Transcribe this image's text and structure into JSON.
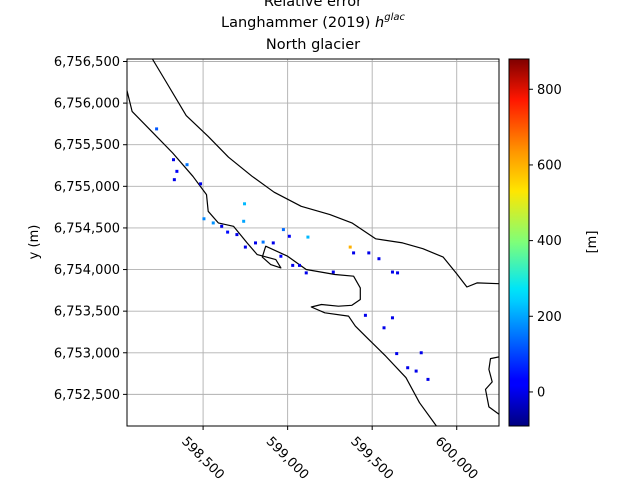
{
  "chart_data": {
    "type": "heatmap",
    "title": {
      "line1": "Relative error",
      "line2_prefix": "Langhammer (2019) ",
      "line2_symbol": "h",
      "line2_superscript": "glac",
      "line3": "North glacier"
    },
    "xlabel": "",
    "ylabel": "y (m)",
    "x_ticks": [
      598500,
      599000,
      599500,
      600000
    ],
    "x_tick_labels": [
      "598,500",
      "599,000",
      "599,500",
      "600,000"
    ],
    "y_ticks": [
      6752500,
      6753000,
      6753500,
      6754000,
      6754500,
      6755000,
      6755500,
      6756000,
      6756500
    ],
    "y_tick_labels": [
      "6,752,500",
      "6,753,000",
      "6,753,500",
      "6,754,000",
      "6,754,500",
      "6,755,000",
      "6,755,500",
      "6,756,000",
      "6,756,500"
    ],
    "xlim": [
      598050,
      600250
    ],
    "ylim": [
      6752120,
      6756530
    ],
    "grid": true,
    "colorbar": {
      "colormap": "jet",
      "range": [
        -90,
        880
      ],
      "ticks": [
        0,
        200,
        400,
        600,
        800
      ],
      "tick_labels": [
        "0",
        "200",
        "400",
        "600",
        "800"
      ],
      "label": "[m]"
    },
    "outline": [
      [
        [
          598200,
          6756530
        ],
        [
          598280,
          6756260
        ],
        [
          598400,
          6755850
        ],
        [
          598530,
          6755600
        ],
        [
          598650,
          6755350
        ],
        [
          598790,
          6755120
        ],
        [
          598920,
          6754930
        ],
        [
          599080,
          6754760
        ],
        [
          599250,
          6754660
        ],
        [
          599380,
          6754560
        ],
        [
          599520,
          6754370
        ],
        [
          599680,
          6754320
        ],
        [
          599800,
          6754250
        ],
        [
          599920,
          6754150
        ],
        [
          600000,
          6753950
        ],
        [
          600060,
          6753790
        ],
        [
          600120,
          6753840
        ],
        [
          600250,
          6753830
        ]
      ],
      [
        [
          598050,
          6756150
        ],
        [
          598080,
          6755900
        ],
        [
          598200,
          6755650
        ],
        [
          598320,
          6755400
        ],
        [
          598440,
          6755120
        ],
        [
          598520,
          6754900
        ],
        [
          598530,
          6754700
        ],
        [
          598590,
          6754560
        ],
        [
          598680,
          6754520
        ],
        [
          598760,
          6754320
        ],
        [
          598820,
          6754180
        ],
        [
          598930,
          6754120
        ],
        [
          598960,
          6754020
        ],
        [
          598900,
          6754060
        ],
        [
          598850,
          6754150
        ],
        [
          598870,
          6754280
        ],
        [
          599000,
          6754160
        ],
        [
          599110,
          6754000
        ],
        [
          599280,
          6753940
        ],
        [
          599390,
          6753920
        ],
        [
          599430,
          6753780
        ],
        [
          599430,
          6753640
        ],
        [
          599380,
          6753570
        ],
        [
          599300,
          6753560
        ],
        [
          599200,
          6753580
        ],
        [
          599140,
          6753550
        ],
        [
          599220,
          6753480
        ],
        [
          599360,
          6753440
        ],
        [
          599400,
          6753320
        ],
        [
          599470,
          6753180
        ],
        [
          599580,
          6752960
        ],
        [
          599700,
          6752700
        ],
        [
          599780,
          6752400
        ],
        [
          599880,
          6752120
        ]
      ],
      [
        [
          600250,
          6752950
        ],
        [
          600200,
          6752930
        ],
        [
          600190,
          6752800
        ],
        [
          600210,
          6752650
        ],
        [
          600170,
          6752560
        ],
        [
          600190,
          6752350
        ],
        [
          600250,
          6752260
        ]
      ]
    ],
    "points": [
      {
        "x": 598225,
        "y": 6755690,
        "value": 120
      },
      {
        "x": 598325,
        "y": 6755320,
        "value": 0
      },
      {
        "x": 598345,
        "y": 6755180,
        "value": 10
      },
      {
        "x": 598405,
        "y": 6755260,
        "value": 150
      },
      {
        "x": 598330,
        "y": 6755080,
        "value": 0
      },
      {
        "x": 598485,
        "y": 6755030,
        "value": 0
      },
      {
        "x": 598505,
        "y": 6754610,
        "value": 170
      },
      {
        "x": 598560,
        "y": 6754560,
        "value": 180
      },
      {
        "x": 598610,
        "y": 6754520,
        "value": 0
      },
      {
        "x": 598645,
        "y": 6754450,
        "value": 40
      },
      {
        "x": 598700,
        "y": 6754420,
        "value": 0
      },
      {
        "x": 598745,
        "y": 6754790,
        "value": 220
      },
      {
        "x": 598740,
        "y": 6754580,
        "value": 200
      },
      {
        "x": 598750,
        "y": 6754270,
        "value": 0
      },
      {
        "x": 598810,
        "y": 6754320,
        "value": 0
      },
      {
        "x": 598855,
        "y": 6754330,
        "value": 150
      },
      {
        "x": 598915,
        "y": 6754320,
        "value": 0
      },
      {
        "x": 598975,
        "y": 6754480,
        "value": 140
      },
      {
        "x": 599010,
        "y": 6754400,
        "value": 10
      },
      {
        "x": 598960,
        "y": 6754160,
        "value": 20
      },
      {
        "x": 599030,
        "y": 6754050,
        "value": 0
      },
      {
        "x": 599070,
        "y": 6754050,
        "value": 0
      },
      {
        "x": 599110,
        "y": 6753960,
        "value": 0
      },
      {
        "x": 599120,
        "y": 6754390,
        "value": 220
      },
      {
        "x": 599270,
        "y": 6753970,
        "value": 0
      },
      {
        "x": 599370,
        "y": 6754270,
        "value": 600
      },
      {
        "x": 599480,
        "y": 6754200,
        "value": 0
      },
      {
        "x": 599540,
        "y": 6754130,
        "value": 0
      },
      {
        "x": 599620,
        "y": 6753970,
        "value": 0
      },
      {
        "x": 599650,
        "y": 6753960,
        "value": 0
      },
      {
        "x": 599460,
        "y": 6753450,
        "value": 0
      },
      {
        "x": 599570,
        "y": 6753300,
        "value": 0
      },
      {
        "x": 599620,
        "y": 6753420,
        "value": 0
      },
      {
        "x": 599645,
        "y": 6752990,
        "value": 0
      },
      {
        "x": 599790,
        "y": 6753000,
        "value": 0
      },
      {
        "x": 599710,
        "y": 6752820,
        "value": 0
      },
      {
        "x": 599760,
        "y": 6752780,
        "value": 0
      },
      {
        "x": 599830,
        "y": 6752680,
        "value": 0
      },
      {
        "x": 599390,
        "y": 6754200,
        "value": 0
      }
    ]
  }
}
